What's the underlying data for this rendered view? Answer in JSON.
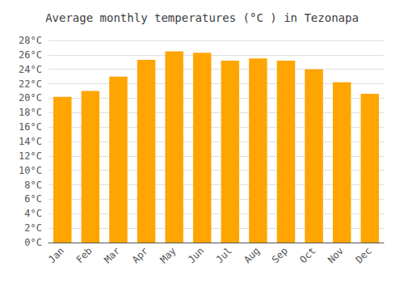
{
  "chart_data": {
    "type": "bar",
    "title": "Average monthly temperatures (°C ) in Tezonapa",
    "categories": [
      "Jan",
      "Feb",
      "Mar",
      "Apr",
      "May",
      "Jun",
      "Jul",
      "Aug",
      "Sep",
      "Oct",
      "Nov",
      "Dec"
    ],
    "values": [
      20.2,
      21.0,
      23.0,
      25.3,
      26.5,
      26.3,
      25.2,
      25.5,
      25.2,
      24.0,
      22.2,
      20.6
    ],
    "color": "#FFA500",
    "ylim": [
      0,
      28
    ],
    "yticks": [
      {
        "value": 0,
        "label": "0°C"
      },
      {
        "value": 2,
        "label": "2°C"
      },
      {
        "value": 4,
        "label": "4°C"
      },
      {
        "value": 6,
        "label": "6°C"
      },
      {
        "value": 8,
        "label": "8°C"
      },
      {
        "value": 10,
        "label": "10°C"
      },
      {
        "value": 12,
        "label": "12°C"
      },
      {
        "value": 14,
        "label": "14°C"
      },
      {
        "value": 16,
        "label": "16°C"
      },
      {
        "value": 18,
        "label": "18°C"
      },
      {
        "value": 20,
        "label": "20°C"
      },
      {
        "value": 22,
        "label": "22°C"
      },
      {
        "value": 24,
        "label": "24°C"
      },
      {
        "value": 26,
        "label": "26°C"
      },
      {
        "value": 28,
        "label": "28°C"
      }
    ],
    "grid": true
  }
}
